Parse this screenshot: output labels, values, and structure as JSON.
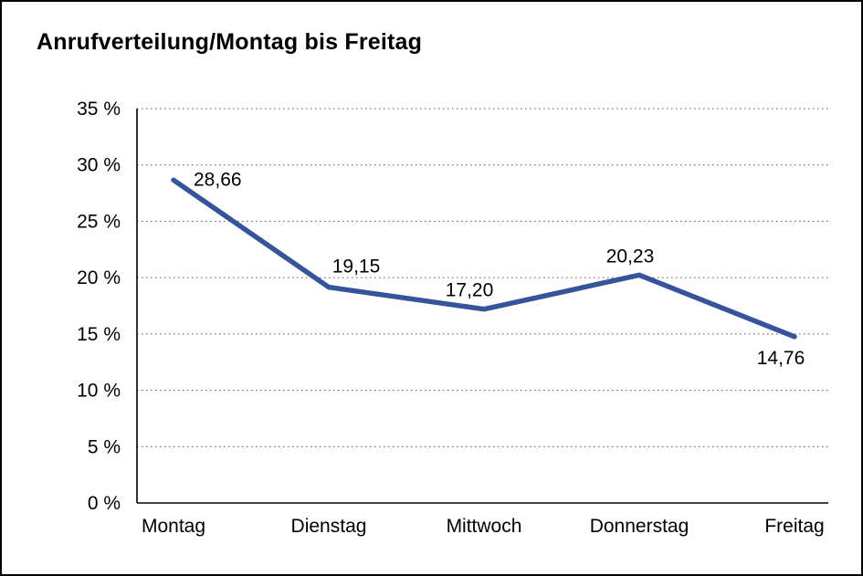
{
  "title": "Anrufverteilung/Montag bis Freitag",
  "chart_data": {
    "type": "line",
    "title": "Anrufverteilung/Montag bis Freitag",
    "categories": [
      "Montag",
      "Dienstag",
      "Mittwoch",
      "Donnerstag",
      "Freitag"
    ],
    "values": [
      28.66,
      19.15,
      17.2,
      20.23,
      14.76
    ],
    "value_labels": [
      "28,66",
      "19,15",
      "17,20",
      "20,23",
      "14,76"
    ],
    "xlabel": "",
    "ylabel": "",
    "ylim": [
      0,
      35
    ],
    "ytick_step": 5,
    "ytick_labels": [
      "0 %",
      "5 %",
      "10 %",
      "15 %",
      "20 %",
      "25 %",
      "30 %",
      "35 %"
    ],
    "grid": "horizontal-dotted",
    "legend": "none",
    "line_color": "#35549b",
    "axis_color": "#000000",
    "gridline_color": "#555555",
    "label_color": "#000000"
  }
}
